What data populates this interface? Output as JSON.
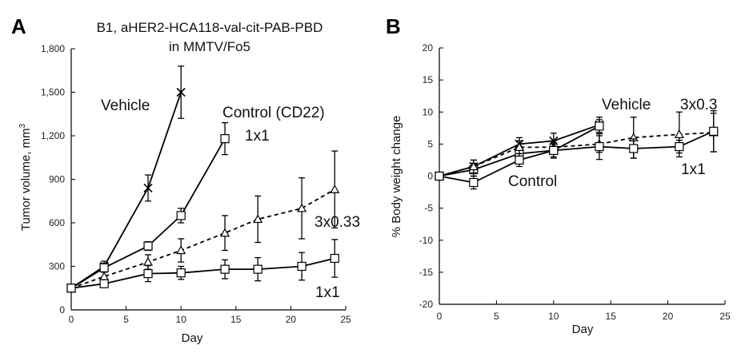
{
  "chart_data": [
    {
      "type": "line",
      "panel_label": "A",
      "title_lines": [
        "B1, aHER2-HCA118-val-cit-PAB-PBD",
        "in MMTV/Fo5"
      ],
      "xlabel": "Day",
      "ylabel": "Tumor volume, mm",
      "ylabel_sup": "3",
      "xlim": [
        0,
        25
      ],
      "ylim": [
        0,
        1800
      ],
      "xticks": [
        0,
        5,
        10,
        15,
        20,
        25
      ],
      "yticks": [
        0,
        300,
        600,
        900,
        1200,
        1500,
        1800
      ],
      "ytick_labels": [
        "0",
        "300",
        "600",
        "900",
        "1,200",
        "1,500",
        "1,800"
      ],
      "series": [
        {
          "name": "Vehicle",
          "marker": "x",
          "dashed": false,
          "x": [
            0,
            3,
            7,
            10
          ],
          "y": [
            150,
            300,
            840,
            1500
          ],
          "err": [
            15,
            35,
            90,
            180
          ]
        },
        {
          "name": "Control (CD22) 1x1",
          "marker": "square",
          "dashed": false,
          "x": [
            0,
            3,
            7,
            10,
            14
          ],
          "y": [
            150,
            290,
            440,
            650,
            1180
          ],
          "err": [
            15,
            30,
            30,
            50,
            110
          ]
        },
        {
          "name": "3x0.33",
          "marker": "triangle",
          "dashed": true,
          "x": [
            0,
            3,
            7,
            10,
            14,
            17,
            21,
            24
          ],
          "y": [
            150,
            230,
            330,
            410,
            530,
            625,
            700,
            830
          ],
          "err": [
            15,
            30,
            50,
            80,
            120,
            160,
            210,
            265
          ]
        },
        {
          "name": "1x1",
          "marker": "square",
          "dashed": false,
          "x": [
            0,
            3,
            7,
            10,
            14,
            17,
            21,
            24
          ],
          "y": [
            150,
            180,
            250,
            255,
            280,
            280,
            300,
            355
          ],
          "err": [
            15,
            25,
            55,
            45,
            65,
            80,
            95,
            130
          ]
        }
      ],
      "annotations": [
        "Vehicle",
        "Control (CD22)",
        "1x1",
        "3x0.33",
        "1x1"
      ]
    },
    {
      "type": "line",
      "panel_label": "B",
      "xlabel": "Day",
      "ylabel": "% Body weight change",
      "xlim": [
        0,
        25
      ],
      "ylim": [
        -20,
        20
      ],
      "xticks": [
        0,
        5,
        10,
        15,
        20,
        25
      ],
      "yticks": [
        -20,
        -15,
        -10,
        -5,
        0,
        5,
        10,
        15,
        20
      ],
      "series": [
        {
          "name": "Vehicle",
          "marker": "x",
          "dashed": false,
          "x": [
            0,
            3,
            7,
            10,
            14
          ],
          "y": [
            0,
            1.5,
            5.0,
            5.5,
            8.0
          ],
          "err": [
            0.3,
            1.0,
            1.0,
            1.2,
            1.2
          ]
        },
        {
          "name": "Control",
          "marker": "square",
          "dashed": false,
          "x": [
            0,
            3,
            7,
            10,
            14
          ],
          "y": [
            0,
            1.0,
            3.5,
            4.0,
            7.8
          ],
          "err": [
            0.3,
            1.0,
            1.0,
            1.0,
            1.0
          ]
        },
        {
          "name": "3x0.3",
          "marker": "triangle",
          "dashed": true,
          "x": [
            0,
            3,
            7,
            10,
            14,
            17,
            21,
            24
          ],
          "y": [
            0,
            1.5,
            4.5,
            4.5,
            5.0,
            6.0,
            6.5,
            6.8
          ],
          "err": [
            0.3,
            1.0,
            1.0,
            1.0,
            1.3,
            3.2,
            3.5,
            3.0
          ]
        },
        {
          "name": "1x1",
          "marker": "square",
          "dashed": false,
          "x": [
            0,
            3,
            7,
            10,
            14,
            17,
            21,
            24
          ],
          "y": [
            0,
            -1.0,
            2.5,
            4.0,
            4.6,
            4.3,
            4.6,
            7.0
          ],
          "err": [
            0.3,
            1.0,
            1.0,
            1.2,
            2.0,
            1.5,
            1.0,
            3.2
          ]
        }
      ],
      "annotations": [
        "Vehicle",
        "3x0.3",
        "Control",
        "1x1"
      ]
    }
  ]
}
